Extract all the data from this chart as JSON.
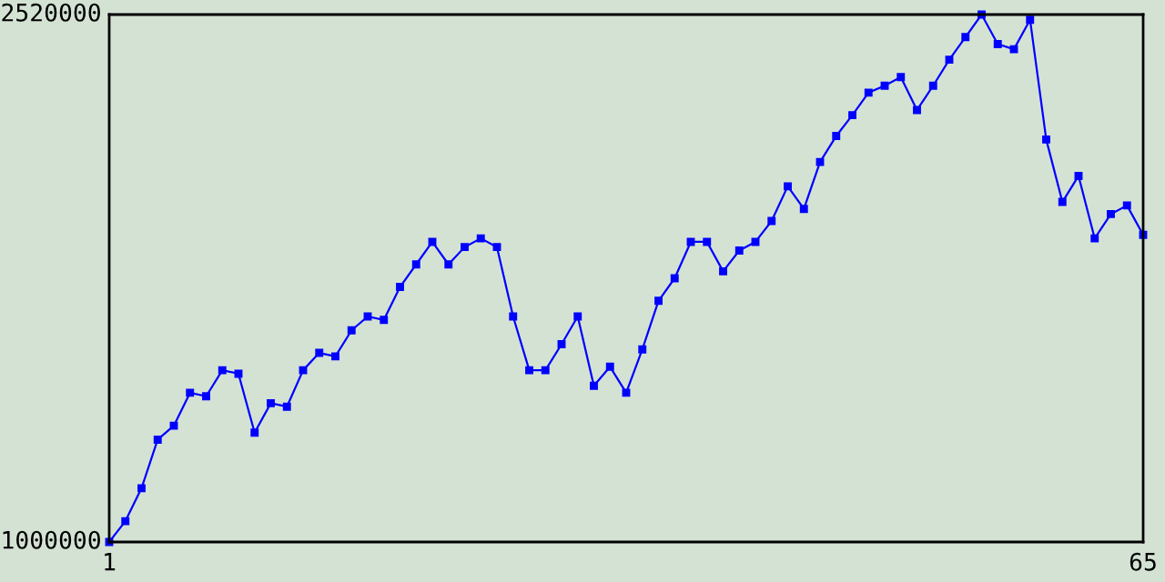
{
  "chart_data": {
    "type": "line",
    "x": [
      1,
      2,
      3,
      4,
      5,
      6,
      7,
      8,
      9,
      10,
      11,
      12,
      13,
      14,
      15,
      16,
      17,
      18,
      19,
      20,
      21,
      22,
      23,
      24,
      25,
      26,
      27,
      28,
      29,
      30,
      31,
      32,
      33,
      34,
      35,
      36,
      37,
      38,
      39,
      40,
      41,
      42,
      43,
      44,
      45,
      46,
      47,
      48,
      49,
      50,
      51,
      52,
      53,
      54,
      55,
      56,
      57,
      58,
      59,
      60,
      61,
      62,
      63,
      64,
      65
    ],
    "series": [
      {
        "color": "#0000ff",
        "values": [
          1000000,
          1060000,
          1155000,
          1295000,
          1335000,
          1430000,
          1420000,
          1495000,
          1485000,
          1315000,
          1400000,
          1390000,
          1495000,
          1545000,
          1535000,
          1610000,
          1650000,
          1640000,
          1735000,
          1800000,
          1865000,
          1800000,
          1850000,
          1875000,
          1850000,
          1650000,
          1495000,
          1495000,
          1570000,
          1650000,
          1450000,
          1505000,
          1430000,
          1555000,
          1695000,
          1760000,
          1865000,
          1865000,
          1780000,
          1840000,
          1865000,
          1925000,
          2025000,
          1960000,
          2095000,
          2170000,
          2230000,
          2295000,
          2315000,
          2340000,
          2245000,
          2315000,
          2390000,
          2455000,
          2520000,
          2435000,
          2420000,
          2505000,
          2160000,
          1980000,
          2055000,
          1875000,
          1945000,
          1970000,
          1885000
        ]
      }
    ],
    "xlim": [
      1,
      65
    ],
    "xticks": [
      1,
      65
    ],
    "ylim": [
      1000000,
      2520000
    ],
    "yticks": [
      1000000,
      2520000
    ],
    "marker": "square",
    "line_style": "solid"
  }
}
